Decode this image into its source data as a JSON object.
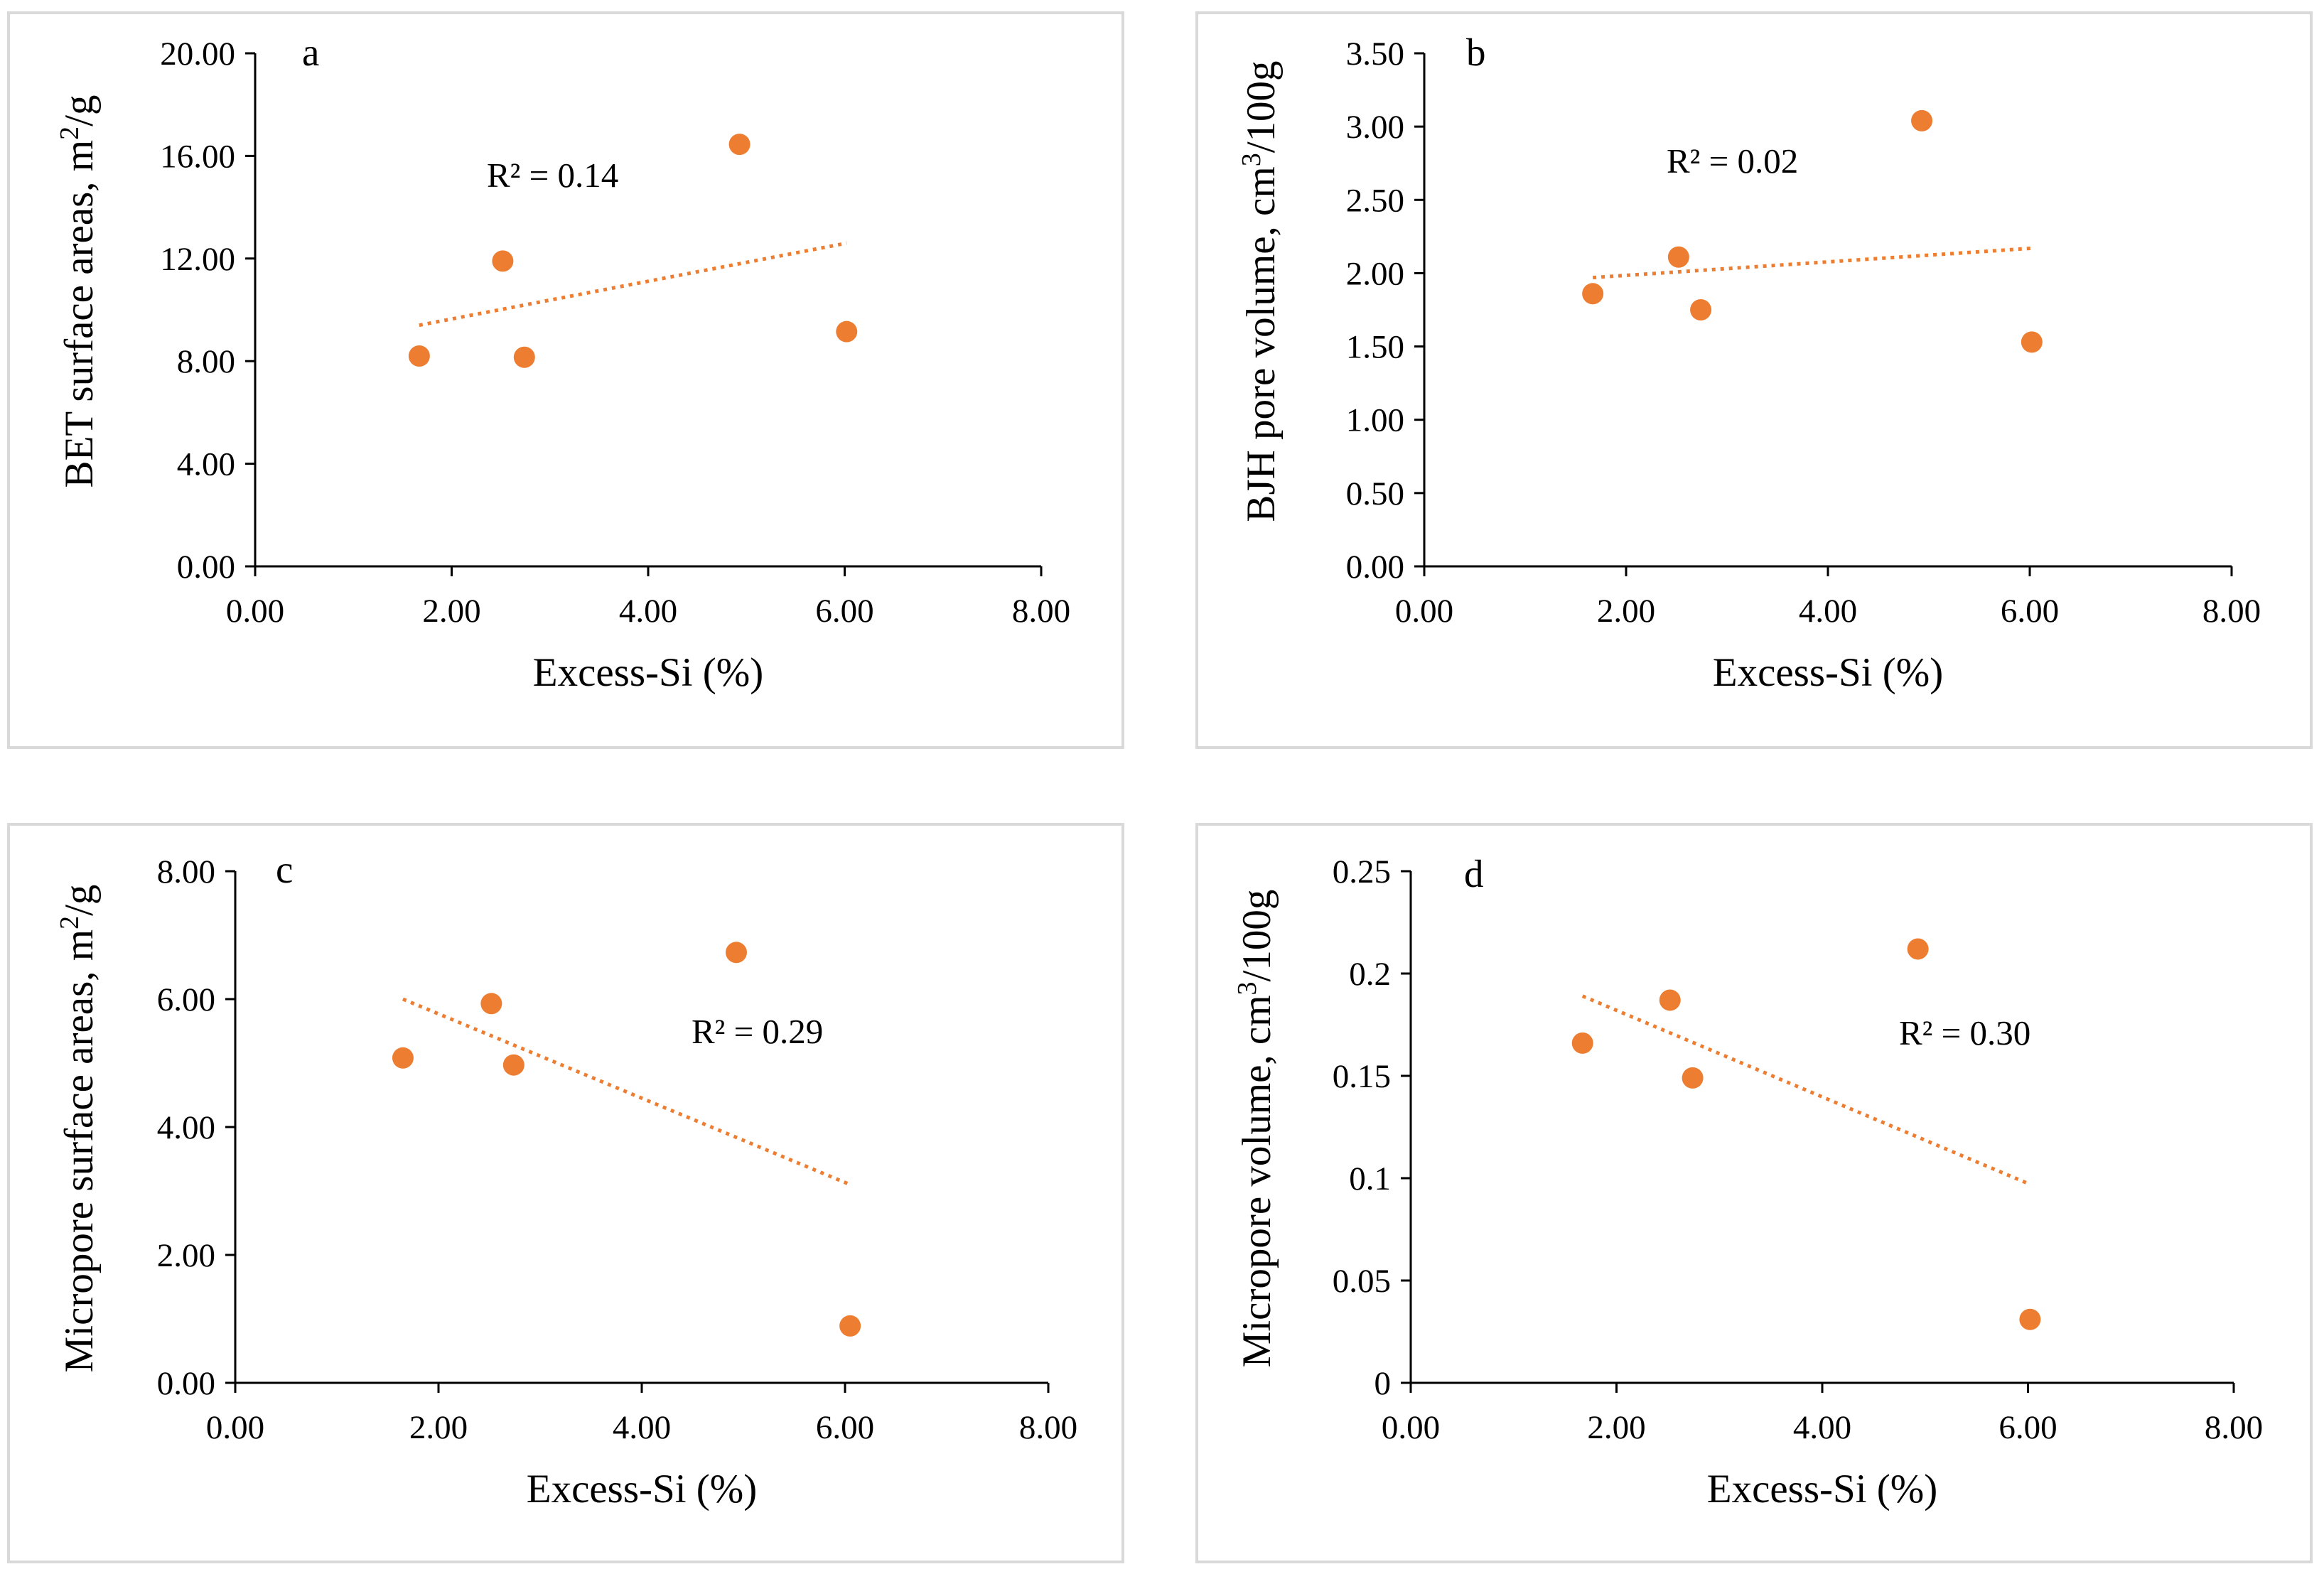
{
  "colors": {
    "marker": "#ED7D31",
    "trendline": "#ED7D31",
    "frame": "#D9D9D9",
    "axis": "#000000"
  },
  "chart_data": [
    {
      "type": "scatter",
      "panel_label": "a",
      "xlabel": "Excess-Si (%)",
      "ylabel": "BET surface areas, m²/g",
      "ylabel_parts": {
        "before": "BET surface areas, m",
        "sup": "2",
        "after": "/g"
      },
      "x_ticks": [
        "0.00",
        "2.00",
        "4.00",
        "6.00",
        "8.00"
      ],
      "y_ticks": [
        "0.00",
        "4.00",
        "8.00",
        "12.00",
        "16.00",
        "20.00"
      ],
      "xlim": [
        0,
        8
      ],
      "ylim": [
        0,
        20
      ],
      "points": [
        {
          "x": 1.67,
          "y": 8.2
        },
        {
          "x": 2.52,
          "y": 11.9
        },
        {
          "x": 2.74,
          "y": 8.15
        },
        {
          "x": 4.93,
          "y": 16.45
        },
        {
          "x": 6.02,
          "y": 9.15
        }
      ],
      "trendline": {
        "type": "linear",
        "x1": 1.67,
        "y1": 9.4,
        "x2": 6.02,
        "y2": 12.6
      },
      "annotation": "R² = 0.14",
      "grid": false,
      "legend": "none"
    },
    {
      "type": "scatter",
      "panel_label": "b",
      "xlabel": "Excess-Si (%)",
      "ylabel": "BJH pore volume, cm³/100g",
      "ylabel_parts": {
        "before": "BJH pore volume, cm",
        "sup": "3",
        "after": "/100g"
      },
      "x_ticks": [
        "0.00",
        "2.00",
        "4.00",
        "6.00",
        "8.00"
      ],
      "y_ticks": [
        "0.00",
        "0.50",
        "1.00",
        "1.50",
        "2.00",
        "2.50",
        "3.00",
        "3.50"
      ],
      "xlim": [
        0,
        8
      ],
      "ylim": [
        0,
        3.5
      ],
      "points": [
        {
          "x": 1.67,
          "y": 1.86
        },
        {
          "x": 2.52,
          "y": 2.11
        },
        {
          "x": 2.74,
          "y": 1.75
        },
        {
          "x": 4.93,
          "y": 3.04
        },
        {
          "x": 6.02,
          "y": 1.53
        }
      ],
      "trendline": {
        "type": "linear",
        "x1": 1.67,
        "y1": 1.97,
        "x2": 6.02,
        "y2": 2.17
      },
      "annotation": "R² = 0.02",
      "grid": false,
      "legend": "none"
    },
    {
      "type": "scatter",
      "panel_label": "c",
      "xlabel": "Excess-Si (%)",
      "ylabel": "Micropore surface areas, m²/g",
      "ylabel_parts": {
        "before": "Micropore surface areas, m",
        "sup": "2",
        "after": "/g"
      },
      "x_ticks": [
        "0.00",
        "2.00",
        "4.00",
        "6.00",
        "8.00"
      ],
      "y_ticks": [
        "0.00",
        "2.00",
        "4.00",
        "6.00",
        "8.00"
      ],
      "xlim": [
        0,
        8
      ],
      "ylim": [
        0,
        8
      ],
      "points": [
        {
          "x": 1.65,
          "y": 5.08
        },
        {
          "x": 2.52,
          "y": 5.93
        },
        {
          "x": 2.74,
          "y": 4.97
        },
        {
          "x": 4.93,
          "y": 6.73
        },
        {
          "x": 6.05,
          "y": 0.89
        }
      ],
      "trendline": {
        "type": "linear",
        "x1": 1.65,
        "y1": 6.0,
        "x2": 6.05,
        "y2": 3.1
      },
      "annotation": "R² = 0.29",
      "grid": false,
      "legend": "none"
    },
    {
      "type": "scatter",
      "panel_label": "d",
      "xlabel": "Excess-Si (%)",
      "ylabel": "Micropore volume, cm³/100g",
      "ylabel_parts": {
        "before": "Micropore volume, cm",
        "sup": "3",
        "after": "/100g"
      },
      "x_ticks": [
        "0.00",
        "2.00",
        "4.00",
        "6.00",
        "8.00"
      ],
      "y_ticks": [
        "0",
        "0.05",
        "0.1",
        "0.15",
        "0.2",
        "0.25"
      ],
      "xlim": [
        0,
        8
      ],
      "ylim": [
        0,
        0.25
      ],
      "points": [
        {
          "x": 1.67,
          "y": 0.166
        },
        {
          "x": 2.52,
          "y": 0.187
        },
        {
          "x": 2.74,
          "y": 0.149
        },
        {
          "x": 4.93,
          "y": 0.212
        },
        {
          "x": 6.02,
          "y": 0.031
        }
      ],
      "trendline": {
        "type": "linear",
        "x1": 1.67,
        "y1": 0.189,
        "x2": 6.02,
        "y2": 0.097
      },
      "annotation": "R² = 0.30",
      "grid": false,
      "legend": "none"
    }
  ]
}
